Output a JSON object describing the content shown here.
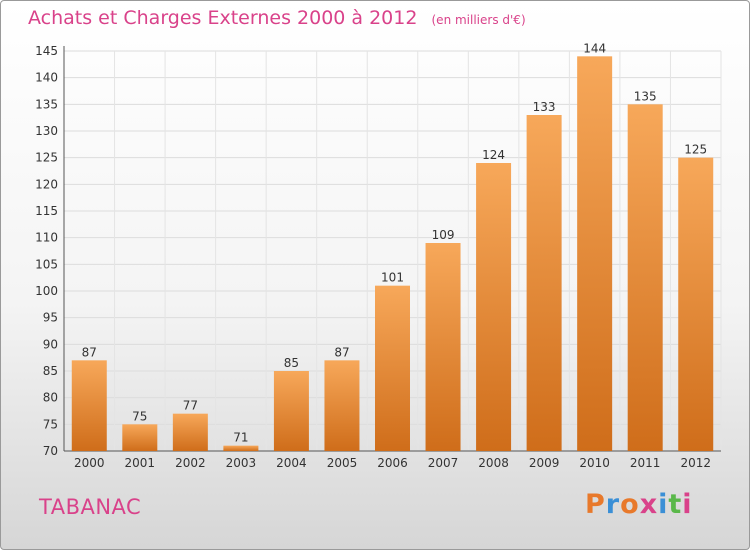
{
  "header": {
    "title": "Achats et Charges Externes 2000 à 2012",
    "unit": "(en milliers d'€)"
  },
  "footer": {
    "place": "TABANAC",
    "logo": "Proxiti"
  },
  "colors": {
    "title": "#d9428a",
    "bar_top": "#f7a85a",
    "bar_bottom": "#cf6d1a",
    "logo_letters": [
      "#e8792b",
      "#3a8fd6",
      "#e8792b",
      "#d9428a",
      "#3a8fd6",
      "#5ab84a",
      "#d9428a"
    ]
  },
  "chart_data": {
    "type": "bar",
    "title": "Achats et Charges Externes 2000 à 2012",
    "ylabel": "(en milliers d'€)",
    "xlabel": "",
    "categories": [
      "2000",
      "2001",
      "2002",
      "2003",
      "2004",
      "2005",
      "2006",
      "2007",
      "2008",
      "2009",
      "2010",
      "2011",
      "2012"
    ],
    "values": [
      87,
      75,
      77,
      71,
      85,
      87,
      101,
      109,
      124,
      133,
      144,
      135,
      125
    ],
    "ylim": [
      70,
      145
    ],
    "yticks": [
      70,
      75,
      80,
      85,
      90,
      95,
      100,
      105,
      110,
      115,
      120,
      125,
      130,
      135,
      140,
      145
    ],
    "grid": true,
    "data_labels": true
  }
}
